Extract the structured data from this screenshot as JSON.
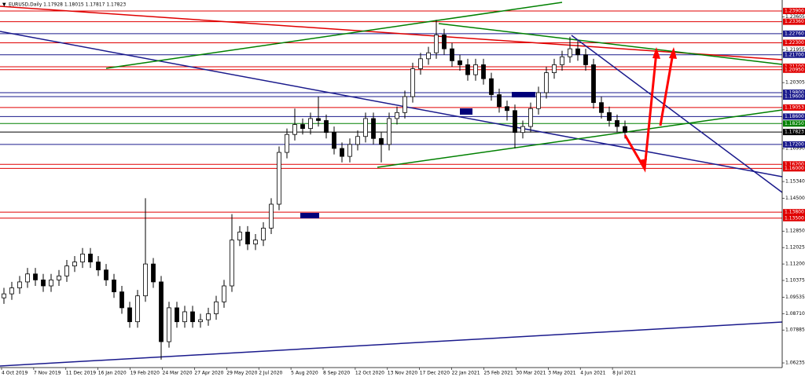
{
  "chart_data": {
    "type": "candlestick",
    "header": "EURUSD,Daily  1.17928 1.18015 1.17817 1.17823",
    "ylim": [
      1.06,
      1.2445
    ],
    "yticks": [
      1.23605,
      1.21955,
      1.20305,
      {
        "value": 1.1699,
        "label": "1.16990"
      },
      {
        "value": 1.1534,
        "label": "1.15340"
      },
      {
        "value": 1.145,
        "label": "1.14500"
      },
      {
        "value": 1.1285,
        "label": "1.12850"
      },
      1.12025,
      {
        "value": 1.112,
        "label": "1.11200"
      },
      1.10375,
      1.09535,
      {
        "value": 1.0871,
        "label": "1.08710"
      },
      1.07885,
      1.06235
    ],
    "x_labels": [
      "4 Oct 2019",
      "7 Nov 2019",
      "11 Dec 2019",
      "16 Jan 2020",
      "19 Feb 2020",
      "24 Mar 2020",
      "27 Apr 2020",
      "29 May 2020",
      "2 Jul 2020",
      "5 Aug 2020",
      "8 Sep 2020",
      "12 Oct 2020",
      "13 Nov 2020",
      "17 Dec 2020",
      "22 Jan 2021",
      "25 Feb 2021",
      "30 Mar 2021",
      "3 May 2021",
      "4 Jun 2021",
      "8 Jul 2021"
    ],
    "levels": [
      {
        "value": 1.239,
        "label": "1.23900",
        "color": "#e00000"
      },
      {
        "value": 1.2336,
        "label": "1.23360",
        "color": "#e00000"
      },
      {
        "value": 1.2276,
        "label": "1.22760",
        "color": "#1a1a8c"
      },
      {
        "value": 1.223,
        "label": "1.22300",
        "color": "#e00000"
      },
      {
        "value": 1.217,
        "label": "1.21700",
        "color": "#1a1a8c"
      },
      {
        "value": 1.211,
        "label": "1.21100",
        "color": "#e00000"
      },
      {
        "value": 1.2095,
        "label": "1.20950",
        "color": "#e00000"
      },
      {
        "value": 1.198,
        "label": "1.19800",
        "color": "#1a1a8c"
      },
      {
        "value": 1.196,
        "label": "1.19600",
        "color": "#1a1a8c"
      },
      {
        "value": 1.19053,
        "color": "#e00000"
      },
      {
        "value": 1.186,
        "label": "1.18600",
        "color": "#1a1a8c"
      },
      {
        "value": 1.1825,
        "label": "1.18250",
        "color": "#008000"
      },
      {
        "value": 1.17823,
        "color": "#000000"
      },
      {
        "value": 1.172,
        "label": "1.17200",
        "color": "#1a1a8c"
      },
      {
        "value": 1.162,
        "label": "1.16200",
        "color": "#e00000"
      },
      {
        "value": 1.16,
        "label": "1.16000",
        "color": "#e00000"
      },
      {
        "value": 1.138,
        "label": "1.13800",
        "color": "#e00000"
      },
      {
        "value": 1.135,
        "label": "1.13500",
        "color": "#e00000"
      }
    ],
    "open": [
      1.095,
      1.097,
      1.1,
      1.103,
      1.107,
      1.104,
      1.101,
      1.104,
      1.106,
      1.111,
      1.113,
      1.117,
      1.113,
      1.109,
      1.104,
      1.098,
      1.09,
      1.083,
      1.096,
      1.112,
      1.103,
      1.073,
      1.09,
      1.083,
      1.088,
      1.083,
      1.084,
      1.087,
      1.093,
      1.101,
      1.124,
      1.128,
      1.122,
      1.124,
      1.13,
      1.142,
      1.168,
      1.177,
      1.182,
      1.18,
      1.185,
      1.184,
      1.178,
      1.17,
      1.166,
      1.172,
      1.176,
      1.185,
      1.175,
      1.172,
      1.185,
      1.188,
      1.196,
      1.21,
      1.215,
      1.218,
      1.227,
      1.22,
      1.214,
      1.212,
      1.207,
      1.212,
      1.205,
      1.197,
      1.191,
      1.189,
      1.178,
      1.181,
      1.19,
      1.198,
      1.208,
      1.212,
      1.216,
      1.22,
      1.217,
      1.212,
      1.193,
      1.188,
      1.184,
      1.181
    ],
    "high": [
      1.1,
      1.103,
      1.106,
      1.11,
      1.11,
      1.107,
      1.107,
      1.109,
      1.114,
      1.116,
      1.12,
      1.12,
      1.116,
      1.112,
      1.107,
      1.101,
      1.093,
      1.099,
      1.145,
      1.115,
      1.106,
      1.093,
      1.093,
      1.091,
      1.091,
      1.087,
      1.09,
      1.096,
      1.104,
      1.137,
      1.131,
      1.131,
      1.127,
      1.133,
      1.145,
      1.171,
      1.18,
      1.19,
      1.185,
      1.188,
      1.196,
      1.187,
      1.181,
      1.173,
      1.175,
      1.179,
      1.188,
      1.188,
      1.178,
      1.188,
      1.191,
      1.199,
      1.213,
      1.218,
      1.221,
      1.2345,
      1.23,
      1.223,
      1.217,
      1.215,
      1.215,
      1.215,
      1.208,
      1.2,
      1.194,
      1.192,
      1.184,
      1.193,
      1.201,
      1.211,
      1.215,
      1.219,
      1.226,
      1.224,
      1.22,
      1.215,
      1.196,
      1.191,
      1.187,
      1.184
    ],
    "low": [
      1.092,
      1.094,
      1.097,
      1.1,
      1.101,
      1.098,
      1.098,
      1.101,
      1.103,
      1.108,
      1.11,
      1.11,
      1.106,
      1.101,
      1.095,
      1.087,
      1.08,
      1.08,
      1.093,
      1.1,
      1.064,
      1.07,
      1.08,
      1.08,
      1.08,
      1.08,
      1.081,
      1.084,
      1.09,
      1.098,
      1.121,
      1.119,
      1.119,
      1.121,
      1.127,
      1.139,
      1.165,
      1.174,
      1.177,
      1.177,
      1.181,
      1.175,
      1.167,
      1.163,
      1.163,
      1.169,
      1.173,
      1.172,
      1.163,
      1.169,
      1.182,
      1.185,
      1.193,
      1.207,
      1.212,
      1.215,
      1.217,
      1.211,
      1.209,
      1.204,
      1.204,
      1.202,
      1.194,
      1.188,
      1.184,
      1.17,
      1.175,
      1.178,
      1.187,
      1.195,
      1.205,
      1.209,
      1.213,
      1.214,
      1.209,
      1.19,
      1.185,
      1.181,
      1.178,
      1.175
    ],
    "close": [
      1.097,
      1.1,
      1.103,
      1.107,
      1.104,
      1.101,
      1.104,
      1.106,
      1.111,
      1.113,
      1.117,
      1.113,
      1.109,
      1.104,
      1.098,
      1.09,
      1.083,
      1.096,
      1.112,
      1.103,
      1.073,
      1.09,
      1.083,
      1.088,
      1.083,
      1.084,
      1.087,
      1.093,
      1.101,
      1.124,
      1.128,
      1.122,
      1.124,
      1.13,
      1.142,
      1.168,
      1.177,
      1.182,
      1.18,
      1.185,
      1.184,
      1.178,
      1.17,
      1.166,
      1.172,
      1.176,
      1.185,
      1.175,
      1.172,
      1.185,
      1.188,
      1.196,
      1.21,
      1.215,
      1.218,
      1.227,
      1.22,
      1.214,
      1.212,
      1.207,
      1.212,
      1.205,
      1.197,
      1.191,
      1.189,
      1.178,
      1.181,
      1.19,
      1.198,
      1.208,
      1.212,
      1.216,
      1.22,
      1.217,
      1.212,
      1.193,
      1.188,
      1.184,
      1.181,
      1.178
    ]
  }
}
